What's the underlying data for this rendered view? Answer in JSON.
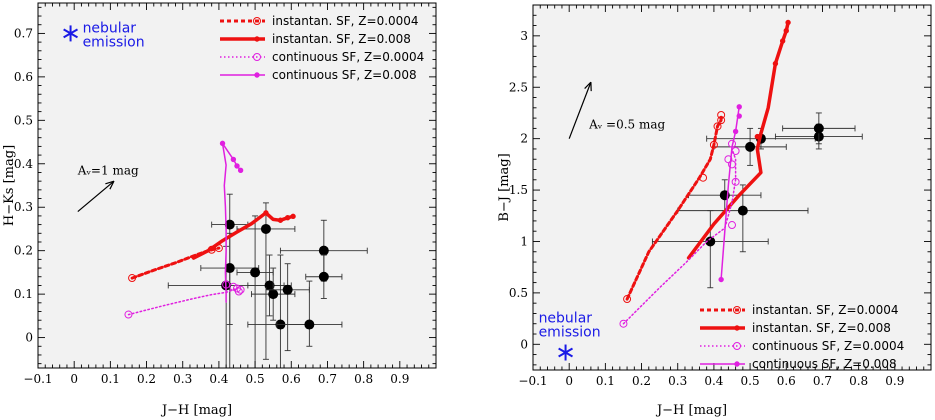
{
  "colors": {
    "red": "#ee1111",
    "magenta": "#e020e0",
    "blue": "#1a1ae6",
    "panel_bg": "#f2f2f2",
    "points": "#000000",
    "errorbars": "#333333"
  },
  "chart_data": [
    {
      "type": "line",
      "xlabel": "J−H [mag]",
      "ylabel": "H−Ks [mag]",
      "xlim": [
        -0.1,
        1.0
      ],
      "ylim": [
        -0.07,
        0.77
      ],
      "xticks": [
        -0.1,
        0,
        0.1,
        0.2,
        0.3,
        0.4,
        0.5,
        0.6,
        0.7,
        0.8,
        0.9
      ],
      "xtick_labels": [
        "−0.1",
        "0",
        "0.1",
        "0.2",
        "0.3",
        "0.4",
        "0.5",
        "0.6",
        "0.7",
        "0.8",
        "0.9"
      ],
      "yticks": [
        0,
        0.1,
        0.2,
        0.3,
        0.4,
        0.5,
        0.6,
        0.7
      ],
      "ytick_labels": [
        "0",
        "0.1",
        "0.2",
        "0.3",
        "0.4",
        "0.5",
        "0.6",
        "0.7"
      ],
      "legend_position": "top-right",
      "nebular": {
        "label_line1": "nebular",
        "label_line2": "emission",
        "x": -0.01,
        "y": 0.7
      },
      "reddening": {
        "label": "Aᵥ=1 mag",
        "from": [
          0.01,
          0.29
        ],
        "to": [
          0.11,
          0.36
        ]
      },
      "series": [
        {
          "name": "instantan. SF, Z=0.0004",
          "color": "#ee1111",
          "style": "dashed",
          "width": 3,
          "points": [
            [
              0.16,
              0.137
            ],
            [
              0.22,
              0.155
            ],
            [
              0.28,
              0.172
            ],
            [
              0.33,
              0.188
            ],
            [
              0.36,
              0.197
            ],
            [
              0.38,
              0.202
            ],
            [
              0.4,
              0.206
            ]
          ],
          "markers": [
            [
              0.16,
              0.137
            ],
            [
              0.38,
              0.202
            ],
            [
              0.4,
              0.206
            ]
          ]
        },
        {
          "name": "instantan. SF, Z=0.008",
          "color": "#ee1111",
          "style": "solid",
          "width": 3.5,
          "points": [
            [
              0.33,
              0.183
            ],
            [
              0.37,
              0.2
            ],
            [
              0.41,
              0.223
            ],
            [
              0.45,
              0.243
            ],
            [
              0.49,
              0.262
            ],
            [
              0.53,
              0.287
            ],
            [
              0.55,
              0.272
            ],
            [
              0.57,
              0.27
            ],
            [
              0.59,
              0.276
            ],
            [
              0.605,
              0.279
            ]
          ],
          "markers": [
            [
              0.53,
              0.287
            ],
            [
              0.57,
              0.27
            ],
            [
              0.59,
              0.276
            ],
            [
              0.605,
              0.279
            ]
          ]
        },
        {
          "name": "continuous SF, Z=0.0004",
          "color": "#e020e0",
          "style": "dotted",
          "width": 1.5,
          "points": [
            [
              0.15,
              0.053
            ],
            [
              0.25,
              0.074
            ],
            [
              0.33,
              0.09
            ],
            [
              0.38,
              0.099
            ],
            [
              0.42,
              0.104
            ],
            [
              0.44,
              0.11
            ],
            [
              0.45,
              0.114
            ],
            [
              0.46,
              0.118
            ]
          ],
          "markers": [
            [
              0.15,
              0.053
            ],
            [
              0.42,
              0.122
            ],
            [
              0.44,
              0.117
            ],
            [
              0.45,
              0.113
            ],
            [
              0.46,
              0.11
            ],
            [
              0.455,
              0.106
            ]
          ]
        },
        {
          "name": "continuous SF, Z=0.008",
          "color": "#e020e0",
          "style": "solid",
          "width": 1.5,
          "points": [
            [
              0.41,
              0.447
            ],
            [
              0.42,
              0.397
            ],
            [
              0.415,
              0.35
            ],
            [
              0.418,
              0.302
            ],
            [
              0.42,
              0.25
            ],
            [
              0.42,
              0.2
            ],
            [
              0.418,
              0.15
            ],
            [
              0.42,
              0.1
            ],
            [
              0.42,
              0.082
            ]
          ],
          "points2": [
            [
              0.41,
              0.447
            ],
            [
              0.44,
              0.41
            ],
            [
              0.45,
              0.395
            ],
            [
              0.46,
              0.385
            ]
          ],
          "markers": [
            [
              0.41,
              0.447
            ],
            [
              0.44,
              0.41
            ],
            [
              0.45,
              0.395
            ],
            [
              0.46,
              0.385
            ]
          ]
        }
      ],
      "observed": [
        {
          "x": 0.43,
          "y": 0.26,
          "xerr": 0.05,
          "yerr": [
            0.07,
            0.23
          ]
        },
        {
          "x": 0.53,
          "y": 0.25,
          "xerr": 0.08,
          "yerr": [
            0.06,
            0.3
          ]
        },
        {
          "x": 0.43,
          "y": 0.16,
          "xerr": 0.08,
          "yerr": [
            0.08,
            0.23
          ]
        },
        {
          "x": 0.42,
          "y": 0.12,
          "xerr": 0.16,
          "yerr": [
            0.09,
            0.3
          ]
        },
        {
          "x": 0.5,
          "y": 0.15,
          "xerr": 0.05,
          "yerr": [
            0.13,
            0.22
          ]
        },
        {
          "x": 0.54,
          "y": 0.12,
          "xerr": 0.06,
          "yerr": [
            0.07,
            0.07
          ]
        },
        {
          "x": 0.55,
          "y": 0.1,
          "xerr": 0.06,
          "yerr": [
            0.06,
            0.06
          ]
        },
        {
          "x": 0.59,
          "y": 0.11,
          "xerr": 0.06,
          "yerr": [
            0.06,
            0.14
          ]
        },
        {
          "x": 0.57,
          "y": 0.03,
          "xerr": 0.09,
          "yerr": [
            0.16,
            0.16
          ]
        },
        {
          "x": 0.65,
          "y": 0.03,
          "xerr": 0.09,
          "yerr": [
            0.1,
            0.05
          ]
        },
        {
          "x": 0.69,
          "y": 0.2,
          "xerr": 0.12,
          "yerr": [
            0.07,
            0.07
          ]
        },
        {
          "x": 0.69,
          "y": 0.14,
          "xerr": 0.05,
          "yerr": [
            0.05,
            0.05
          ]
        }
      ]
    },
    {
      "type": "line",
      "xlabel": "J−H [mag]",
      "ylabel": "B−J [mag]",
      "xlim": [
        -0.1,
        1.0
      ],
      "ylim": [
        -0.25,
        3.3
      ],
      "xticks": [
        -0.1,
        0,
        0.1,
        0.2,
        0.3,
        0.4,
        0.5,
        0.6,
        0.7,
        0.8,
        0.9
      ],
      "xtick_labels": [
        "−0.1",
        "0",
        "0.1",
        "0.2",
        "0.3",
        "0.4",
        "0.5",
        "0.6",
        "0.7",
        "0.8",
        "0.9"
      ],
      "yticks": [
        0,
        0.5,
        1,
        1.5,
        2,
        2.5,
        3
      ],
      "ytick_labels": [
        "0",
        "0.5",
        "1",
        "1.5",
        "2",
        "2.5",
        "3"
      ],
      "legend_position": "bottom-right",
      "nebular": {
        "label_line1": "nebular",
        "label_line2": "emission",
        "x": -0.01,
        "y": -0.08
      },
      "reddening": {
        "label": "Aᵥ =0.5 mag",
        "from": [
          0.0,
          2.0
        ],
        "to": [
          0.06,
          2.55
        ]
      },
      "series": [
        {
          "name": "instantan. SF, Z=0.0004",
          "color": "#ee1111",
          "style": "dashed",
          "width": 3,
          "points": [
            [
              0.16,
              0.44
            ],
            [
              0.22,
              0.9
            ],
            [
              0.3,
              1.3
            ],
            [
              0.36,
              1.62
            ],
            [
              0.39,
              1.8
            ],
            [
              0.4,
              1.94
            ],
            [
              0.41,
              2.12
            ],
            [
              0.42,
              2.18
            ],
            [
              0.42,
              2.23
            ]
          ],
          "markers": [
            [
              0.16,
              0.44
            ],
            [
              0.37,
              1.62
            ],
            [
              0.4,
              1.94
            ],
            [
              0.41,
              2.12
            ],
            [
              0.42,
              2.18
            ],
            [
              0.42,
              2.23
            ]
          ]
        },
        {
          "name": "instantan. SF, Z=0.008",
          "color": "#ee1111",
          "style": "solid",
          "width": 3.5,
          "points": [
            [
              0.33,
              0.84
            ],
            [
              0.4,
              1.17
            ],
            [
              0.47,
              1.45
            ],
            [
              0.53,
              1.67
            ],
            [
              0.52,
              1.9
            ],
            [
              0.53,
              2.05
            ],
            [
              0.55,
              2.3
            ],
            [
              0.57,
              2.73
            ],
            [
              0.59,
              2.95
            ],
            [
              0.6,
              3.05
            ],
            [
              0.605,
              3.13
            ]
          ],
          "markers": [
            [
              0.52,
              2.02
            ],
            [
              0.57,
              2.73
            ],
            [
              0.59,
              2.95
            ],
            [
              0.6,
              3.05
            ],
            [
              0.605,
              3.13
            ]
          ]
        },
        {
          "name": "continuous SF, Z=0.0004",
          "color": "#e020e0",
          "style": "dotted",
          "width": 1.5,
          "points": [
            [
              0.15,
              0.2
            ],
            [
              0.25,
              0.55
            ],
            [
              0.33,
              0.82
            ],
            [
              0.38,
              1.0
            ],
            [
              0.43,
              1.13
            ],
            [
              0.45,
              1.38
            ],
            [
              0.46,
              1.6
            ],
            [
              0.46,
              1.8
            ],
            [
              0.45,
              1.9
            ]
          ],
          "markers": [
            [
              0.15,
              0.2
            ],
            [
              0.45,
              1.16
            ],
            [
              0.46,
              1.58
            ],
            [
              0.45,
              1.75
            ],
            [
              0.44,
              1.8
            ],
            [
              0.46,
              1.88
            ],
            [
              0.45,
              1.95
            ]
          ]
        },
        {
          "name": "continuous SF, Z=0.008",
          "color": "#e020e0",
          "style": "solid",
          "width": 1.5,
          "points": [
            [
              0.42,
              0.63
            ],
            [
              0.43,
              1.1
            ],
            [
              0.44,
              1.55
            ],
            [
              0.45,
              1.92
            ],
            [
              0.46,
              2.07
            ],
            [
              0.47,
              2.31
            ]
          ],
          "markers": [
            [
              0.42,
              0.63
            ],
            [
              0.46,
              2.07
            ],
            [
              0.47,
              2.22
            ],
            [
              0.47,
              2.31
            ]
          ]
        }
      ],
      "observed": [
        {
          "x": 0.39,
          "y": 1.0,
          "xerr": 0.16,
          "yerr": [
            0.3,
            0.45
          ]
        },
        {
          "x": 0.43,
          "y": 1.45,
          "xerr": 0.1,
          "yerr": [
            0.15,
            0.15
          ]
        },
        {
          "x": 0.48,
          "y": 1.3,
          "xerr": 0.18,
          "yerr": [
            0.25,
            0.4
          ]
        },
        {
          "x": 0.5,
          "y": 1.92,
          "xerr": 0.1,
          "yerr": [
            0.18,
            0.18
          ]
        },
        {
          "x": 0.53,
          "y": 2.0,
          "xerr": 0.15,
          "yerr": [
            0.1,
            0.1
          ]
        },
        {
          "x": 0.69,
          "y": 2.02,
          "xerr": 0.12,
          "yerr": [
            0.12,
            0.12
          ]
        },
        {
          "x": 0.69,
          "y": 2.1,
          "xerr": 0.1,
          "yerr": [
            0.15,
            0.15
          ]
        }
      ]
    }
  ]
}
